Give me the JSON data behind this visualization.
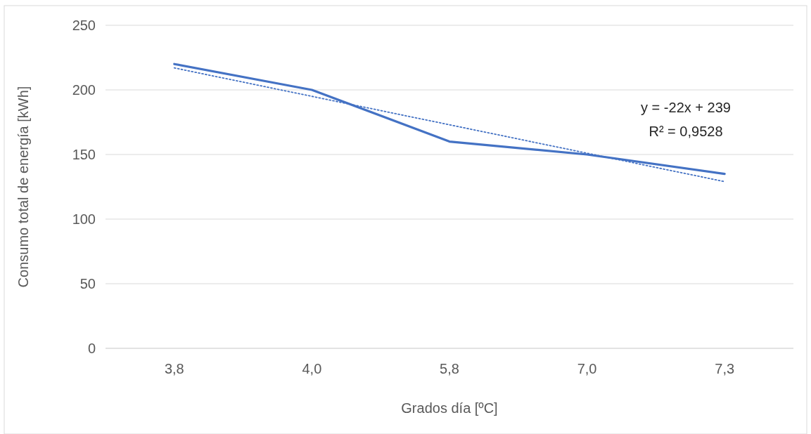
{
  "chart_data": {
    "type": "line",
    "xlabel": "Grados día [ºC]",
    "ylabel": "Consumo total de energía [kWh]",
    "categories": [
      "3,8",
      "4,0",
      "5,8",
      "7,0",
      "7,3"
    ],
    "ylim": [
      0,
      250
    ],
    "yticks": [
      0,
      50,
      100,
      150,
      200,
      250
    ],
    "grid": "y",
    "series": [
      {
        "color": "#4472c4",
        "values": [
          220,
          200,
          160,
          150,
          135
        ],
        "line_style": "solid"
      },
      {
        "color": "#4472c4",
        "values": [
          217,
          195,
          173,
          151,
          129
        ],
        "line_style": "dotted"
      }
    ],
    "annotations": [
      "y = -22x + 239",
      "R² = 0,9528"
    ]
  }
}
